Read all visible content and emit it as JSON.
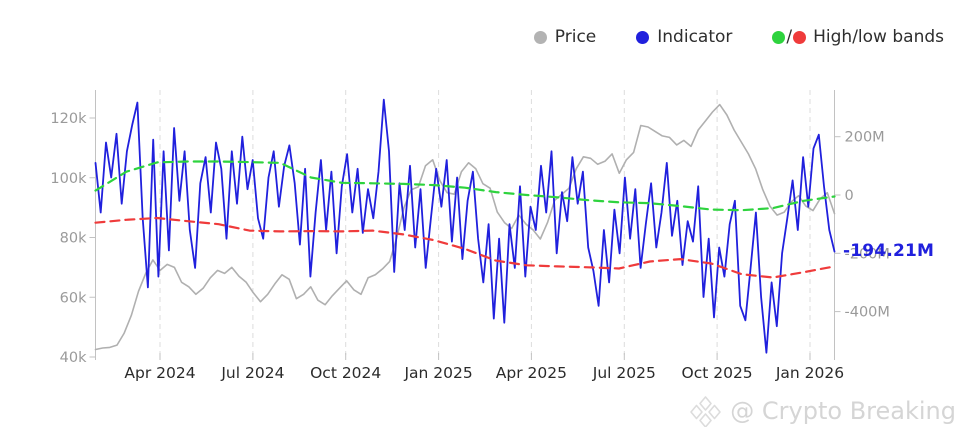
{
  "legend": {
    "items": [
      {
        "id": "price",
        "label": "Price",
        "color": "#b3b3b3"
      },
      {
        "id": "indicator",
        "label": "Indicator",
        "color": "#2020dd"
      },
      {
        "id": "bands",
        "label": "High/low bands",
        "high_color": "#2ed33e",
        "low_color": "#ef3b3b",
        "separator": "/"
      }
    ]
  },
  "annotation": {
    "last_value_label": "-194.21M",
    "color": "#2020dd"
  },
  "watermark": {
    "text": "@ Crypto Breaking",
    "icon": "diamond-logo-icon"
  },
  "chart_data": {
    "type": "line",
    "title": "",
    "grid": "vertical-dashed",
    "legend_position": "top-right",
    "x_tick_labels": [
      "Apr 2024",
      "Jul 2024",
      "Oct 2024",
      "Jan 2025",
      "Apr 2025",
      "Jul 2025",
      "Oct 2025",
      "Jan 2026"
    ],
    "left_axis": {
      "unit": "k",
      "tick_labels": [
        "120k",
        "100k",
        "80k",
        "60k",
        "40k"
      ],
      "tick_values": [
        120,
        100,
        80,
        60,
        40
      ],
      "range": [
        38,
        129
      ]
    },
    "right_axis": {
      "unit": "M",
      "tick_labels": [
        "200M",
        "0",
        "-200M",
        "-400M"
      ],
      "tick_values": [
        200,
        0,
        -200,
        -400
      ],
      "range": [
        -566,
        360
      ]
    },
    "series": [
      {
        "name": "Price",
        "axis": "left",
        "unit": "k",
        "color": "#b0b0b0",
        "style": "solid",
        "width": 1.6,
        "values": [
          42.5,
          43,
          43.2,
          44,
          48,
          54,
          62,
          68,
          72.5,
          69,
          71,
          70,
          65,
          63.5,
          61,
          63,
          66.5,
          69,
          68,
          70,
          67,
          65,
          61.5,
          58.5,
          61,
          64.5,
          67.5,
          66,
          59.5,
          61,
          63.5,
          59,
          57.5,
          60.5,
          63,
          65.5,
          62.5,
          61,
          66.5,
          67.5,
          69.5,
          72,
          80,
          90,
          96,
          97,
          104,
          106,
          99,
          95,
          94.5,
          102,
          105,
          103,
          98,
          96.5,
          88.5,
          85,
          83,
          87.5,
          84.5,
          82.5,
          79.5,
          85,
          92.5,
          94.5,
          96.5,
          103,
          107,
          106.5,
          104.5,
          105.5,
          108,
          101.5,
          106,
          108.5,
          117.5,
          117,
          115.5,
          114,
          113.5,
          111,
          112.5,
          110.5,
          116,
          119,
          122,
          124.5,
          121,
          116,
          112,
          108,
          103,
          96,
          90.5,
          87.5,
          88.5,
          92,
          94,
          90.5,
          89,
          93,
          95,
          88
        ]
      },
      {
        "name": "Indicator",
        "axis": "right",
        "unit": "M",
        "color": "#2020dd",
        "style": "solid",
        "width": 1.8,
        "values": [
          110,
          -60,
          180,
          60,
          210,
          -30,
          150,
          240,
          317,
          -80,
          -317,
          190,
          -280,
          150,
          -190,
          230,
          -20,
          150,
          -120,
          -250,
          40,
          130,
          -60,
          180,
          90,
          -150,
          150,
          -30,
          200,
          20,
          120,
          -80,
          -150,
          60,
          150,
          -40,
          100,
          170,
          40,
          -170,
          90,
          -280,
          -60,
          120,
          -120,
          80,
          -200,
          30,
          140,
          -60,
          90,
          -130,
          20,
          -80,
          80,
          327,
          150,
          -264,
          40,
          -120,
          100,
          -180,
          20,
          -250,
          -80,
          90,
          -40,
          120,
          -160,
          60,
          -220,
          -20,
          80,
          -150,
          -300,
          -100,
          -424,
          -150,
          -438,
          -100,
          -250,
          30,
          -280,
          -40,
          -120,
          100,
          -60,
          150,
          -200,
          10,
          -90,
          130,
          -30,
          80,
          -180,
          -260,
          -380,
          -120,
          -300,
          -50,
          -200,
          60,
          -150,
          20,
          -250,
          -100,
          40,
          -180,
          -60,
          110,
          -140,
          -20,
          -240,
          -90,
          -160,
          30,
          -350,
          -150,
          -420,
          -180,
          -280,
          -100,
          -20,
          -380,
          -430,
          -250,
          -60,
          -350,
          -541,
          -300,
          -450,
          -200,
          -80,
          50,
          -120,
          130,
          -40,
          160,
          207,
          30,
          -120,
          -194.21
        ]
      },
      {
        "name": "High band",
        "axis": "right",
        "unit": "M",
        "color": "#2ed33e",
        "style": "dashed",
        "width": 2.2,
        "values": [
          15,
          80,
          112,
          115,
          115,
          113,
          110,
          60,
          42,
          40,
          38,
          34,
          25,
          10,
          0,
          -8,
          -18,
          -25,
          -28,
          -38,
          -50,
          -52,
          -45,
          -20,
          -5
        ]
      },
      {
        "name": "Low band",
        "axis": "right",
        "unit": "M",
        "color": "#ef3b3b",
        "style": "dashed",
        "width": 2.2,
        "values": [
          -95,
          -85,
          -79,
          -90,
          -100,
          -122,
          -125,
          -124,
          -125,
          -122,
          -135,
          -155,
          -185,
          -225,
          -241,
          -245,
          -248,
          -252,
          -228,
          -220,
          -235,
          -272,
          -283,
          -265,
          -245
        ]
      }
    ]
  }
}
